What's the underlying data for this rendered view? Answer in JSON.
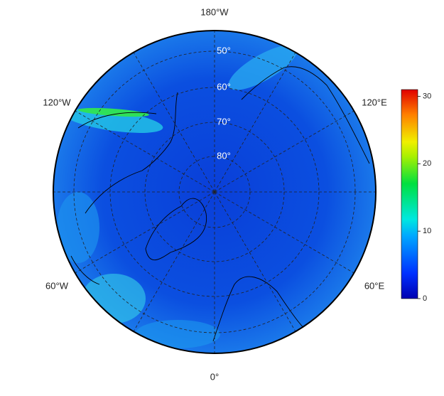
{
  "map": {
    "longitude_labels": [
      "180°W",
      "120°W",
      "120°E",
      "60°W",
      "60°E",
      "0°"
    ],
    "latitude_labels": [
      "50°",
      "60°",
      "70°",
      "80°"
    ],
    "colorbar": {
      "range": [
        0,
        31
      ],
      "ticks": [
        0,
        10,
        20,
        30
      ]
    }
  }
}
